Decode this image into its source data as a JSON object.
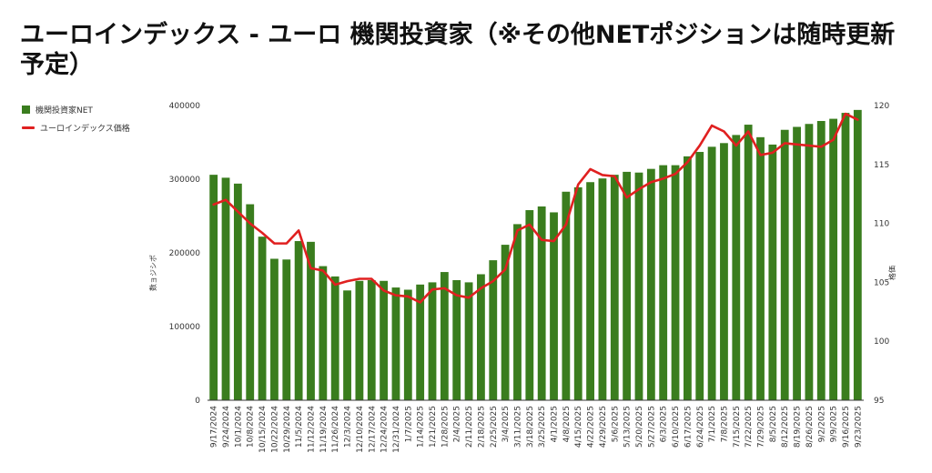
{
  "title": "ユーロインデックス - ユーロ 機関投資家（※その他NETポジションは随時更新予定）",
  "chart_data": {
    "type": "bar+line",
    "title": "ユーロインデックス - ユーロ 機関投資家（※その他NETポジションは随時更新予定）",
    "legend_position": "left",
    "grid": false,
    "categories": [
      "9/17/2024",
      "9/24/2024",
      "10/1/2024",
      "10/8/2024",
      "10/15/2024",
      "10/22/2024",
      "10/29/2024",
      "11/5/2024",
      "11/12/2024",
      "11/19/2024",
      "11/26/2024",
      "12/3/2024",
      "12/10/2024",
      "12/17/2024",
      "12/24/2024",
      "12/31/2024",
      "1/7/2025",
      "1/14/2025",
      "1/21/2025",
      "1/28/2025",
      "2/4/2025",
      "2/11/2025",
      "2/18/2025",
      "2/25/2025",
      "3/4/2025",
      "3/11/2025",
      "3/18/2025",
      "3/25/2025",
      "4/1/2025",
      "4/8/2025",
      "4/15/2025",
      "4/22/2025",
      "4/29/2025",
      "5/6/2025",
      "5/13/2025",
      "5/20/2025",
      "5/27/2025",
      "6/3/2025",
      "6/10/2025",
      "6/17/2025",
      "6/24/2025",
      "7/1/2025",
      "7/8/2025",
      "7/15/2025",
      "7/22/2025",
      "7/29/2025",
      "8/5/2025",
      "8/12/2025",
      "8/19/2025",
      "8/26/2025",
      "9/2/2025",
      "9/9/2025",
      "9/16/2025",
      "9/23/2025"
    ],
    "series": [
      {
        "name": "機関投資家NET",
        "type": "bar",
        "axis": "left",
        "color": "#3a7d1e",
        "values": [
          306000,
          302000,
          294000,
          266000,
          222000,
          192000,
          191000,
          216000,
          215000,
          182000,
          168000,
          149000,
          162000,
          163000,
          162000,
          153000,
          150000,
          157000,
          160000,
          174000,
          163000,
          160000,
          171000,
          190000,
          211000,
          239000,
          258000,
          263000,
          255000,
          283000,
          289000,
          296000,
          301000,
          306000,
          310000,
          309000,
          314000,
          319000,
          319000,
          331000,
          337000,
          344000,
          349000,
          360000,
          374000,
          357000,
          347000,
          367000,
          371000,
          375000,
          379000,
          382000,
          390000,
          394000
        ]
      },
      {
        "name": "ユーロインデックス価格",
        "type": "line",
        "axis": "right",
        "color": "#e02020",
        "values": [
          111.6,
          112.0,
          111.0,
          110.0,
          109.2,
          108.3,
          108.3,
          109.4,
          106.2,
          106.0,
          104.8,
          105.1,
          105.3,
          105.3,
          104.3,
          103.9,
          103.8,
          103.3,
          104.4,
          104.5,
          103.9,
          103.7,
          104.5,
          105.1,
          106.1,
          109.4,
          109.9,
          108.6,
          108.5,
          109.9,
          113.3,
          114.6,
          114.1,
          114.0,
          112.2,
          112.9,
          113.5,
          113.8,
          114.2,
          115.2,
          116.6,
          118.3,
          117.8,
          116.6,
          117.8,
          115.8,
          116.0,
          116.8,
          116.7,
          116.6,
          116.5,
          117.1,
          119.3,
          118.8
        ]
      }
    ],
    "y_left": {
      "label": "数ョジシポ",
      "min": 0,
      "max": 400000,
      "ticks": [
        "0",
        "100000",
        "200000",
        "300000",
        "400000"
      ]
    },
    "y_right": {
      "label": "格価",
      "min": 95,
      "max": 120,
      "ticks": [
        "95",
        "100",
        "105",
        "110",
        "115",
        "120"
      ]
    }
  }
}
